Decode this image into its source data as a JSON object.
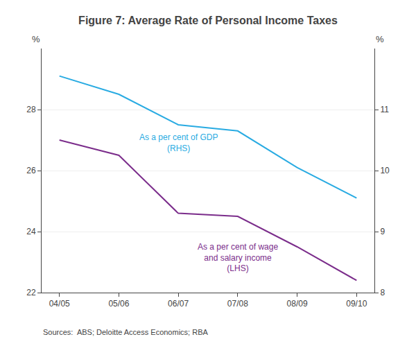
{
  "chart_data": {
    "type": "line",
    "title": "Figure 7: Average Rate of Personal Income Taxes",
    "categories": [
      "04/05",
      "05/06",
      "06/07",
      "07/08",
      "08/09",
      "09/10"
    ],
    "series": [
      {
        "color": "#7B2D8B",
        "values": [
          27.0,
          26.5,
          24.6,
          24.5,
          23.5,
          22.4
        ],
        "axis": "y"
      },
      {
        "color": "#29ABE2",
        "values": [
          11.55,
          11.25,
          10.75,
          10.65,
          10.05,
          9.55
        ],
        "axis": "y2"
      }
    ],
    "ylim": [
      22,
      30
    ],
    "yticks": [
      22,
      24,
      26,
      28
    ],
    "y2lim": [
      8,
      12
    ],
    "y2ticks": [
      8,
      9,
      10,
      11
    ],
    "ylabel": "%",
    "y2label": "%",
    "annotations": [
      {
        "text": "As a per cent of GDP\n(RHS)",
        "color": "#29ABE2"
      },
      {
        "text": "As a per cent of wage\nand salary income\n(LHS)",
        "color": "#7B2D8B"
      }
    ],
    "source": "Sources:  ABS; Deloitte Access Economics; RBA",
    "grid": true
  }
}
